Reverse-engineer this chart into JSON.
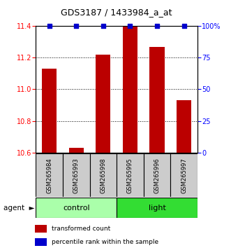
{
  "title": "GDS3187 / 1433984_a_at",
  "samples": [
    "GSM265984",
    "GSM265993",
    "GSM265998",
    "GSM265995",
    "GSM265996",
    "GSM265997"
  ],
  "red_values": [
    11.13,
    10.63,
    11.22,
    11.4,
    11.27,
    10.93
  ],
  "blue_values": [
    100,
    100,
    100,
    100,
    100,
    100
  ],
  "ylim_left": [
    10.6,
    11.4
  ],
  "ylim_right": [
    0,
    100
  ],
  "yticks_left": [
    10.6,
    10.8,
    11.0,
    11.2,
    11.4
  ],
  "yticks_right": [
    0,
    25,
    50,
    75,
    100
  ],
  "ytick_labels_right": [
    "0",
    "25",
    "50",
    "75",
    "100%"
  ],
  "groups": [
    {
      "label": "control",
      "color": "#aaffaa"
    },
    {
      "label": "light",
      "color": "#33dd33"
    }
  ],
  "bar_color": "#bb0000",
  "dot_color": "#0000cc",
  "bar_width": 0.55,
  "sample_box_color": "#cccccc",
  "legend_items": [
    {
      "color": "#bb0000",
      "label": "transformed count"
    },
    {
      "color": "#0000cc",
      "label": "percentile rank within the sample"
    }
  ]
}
